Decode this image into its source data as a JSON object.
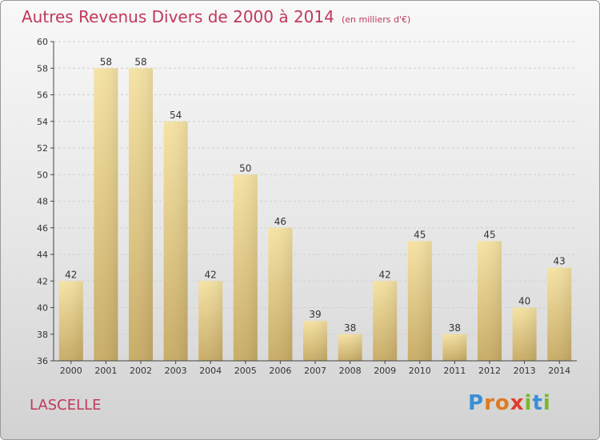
{
  "title": "Autres Revenus Divers de 2000 à 2014",
  "unit": "(en milliers d'€)",
  "place": "LASCELLE",
  "logo": {
    "text": "Proxiti",
    "letters": [
      {
        "ch": "P",
        "color": "#3a8fd8"
      },
      {
        "ch": "r",
        "color": "#e07a1f"
      },
      {
        "ch": "o",
        "color": "#e07a1f"
      },
      {
        "ch": "x",
        "color": "#e23b2b"
      },
      {
        "ch": "i",
        "color": "#7ab82b"
      },
      {
        "ch": "t",
        "color": "#3a8fd8"
      },
      {
        "ch": "i",
        "color": "#7ab82b"
      }
    ]
  },
  "colors": {
    "title": "#c0395a",
    "bar_top": "#f6e3a4",
    "bar_bottom": "#c9ad68",
    "grid": "#cfcfcf",
    "axis": "#444444"
  },
  "chart_data": {
    "type": "bar",
    "categories": [
      "2000",
      "2001",
      "2002",
      "2003",
      "2004",
      "2005",
      "2006",
      "2007",
      "2008",
      "2009",
      "2010",
      "2011",
      "2012",
      "2013",
      "2014"
    ],
    "values": [
      42,
      58,
      58,
      54,
      42,
      50,
      46,
      39,
      38,
      42,
      45,
      38,
      45,
      40,
      43
    ],
    "ylim": [
      36,
      60
    ],
    "yticks": [
      36,
      38,
      40,
      42,
      44,
      46,
      48,
      50,
      52,
      54,
      56,
      58,
      60
    ],
    "grid": true,
    "data_labels": true
  }
}
